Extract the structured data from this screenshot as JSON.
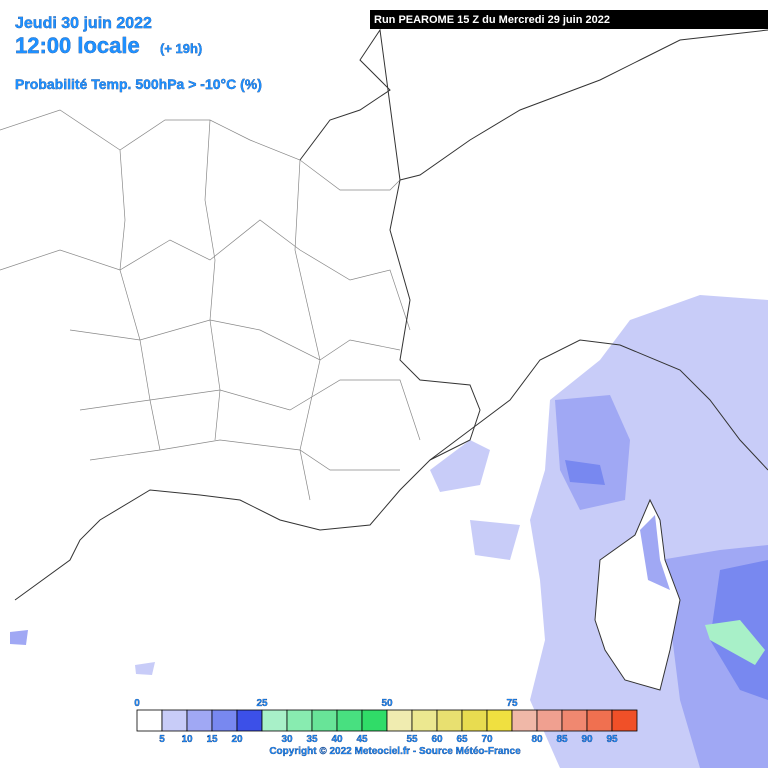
{
  "header": {
    "date": "Jeudi 30 juin 2022",
    "time": "12:00 locale",
    "lead": "(+ 19h)",
    "parameter": "Probabilité Temp. 500hPa > -10°C (%)",
    "run": "Run PEAROME 15 Z du Mercredi 29 juin 2022"
  },
  "legend": {
    "ticks": [
      0,
      5,
      10,
      15,
      20,
      25,
      30,
      35,
      40,
      45,
      50,
      55,
      60,
      65,
      70,
      75,
      80,
      85,
      90,
      95
    ],
    "colors": [
      "#ffffff",
      "#c8ccf8",
      "#a0a8f4",
      "#7888f0",
      "#3c50e8",
      "#a8f0c8",
      "#88ecb0",
      "#68e498",
      "#48e080",
      "#30dc68",
      "#f0ecb0",
      "#ece890",
      "#e8e070",
      "#e8dc50",
      "#f0e040",
      "#f0b8a8",
      "#f0a090",
      "#f08870",
      "#f07050",
      "#f05028"
    ]
  },
  "footer": {
    "copyright": "Copyright © 2022 Meteociel.fr - Source Météo-France"
  }
}
